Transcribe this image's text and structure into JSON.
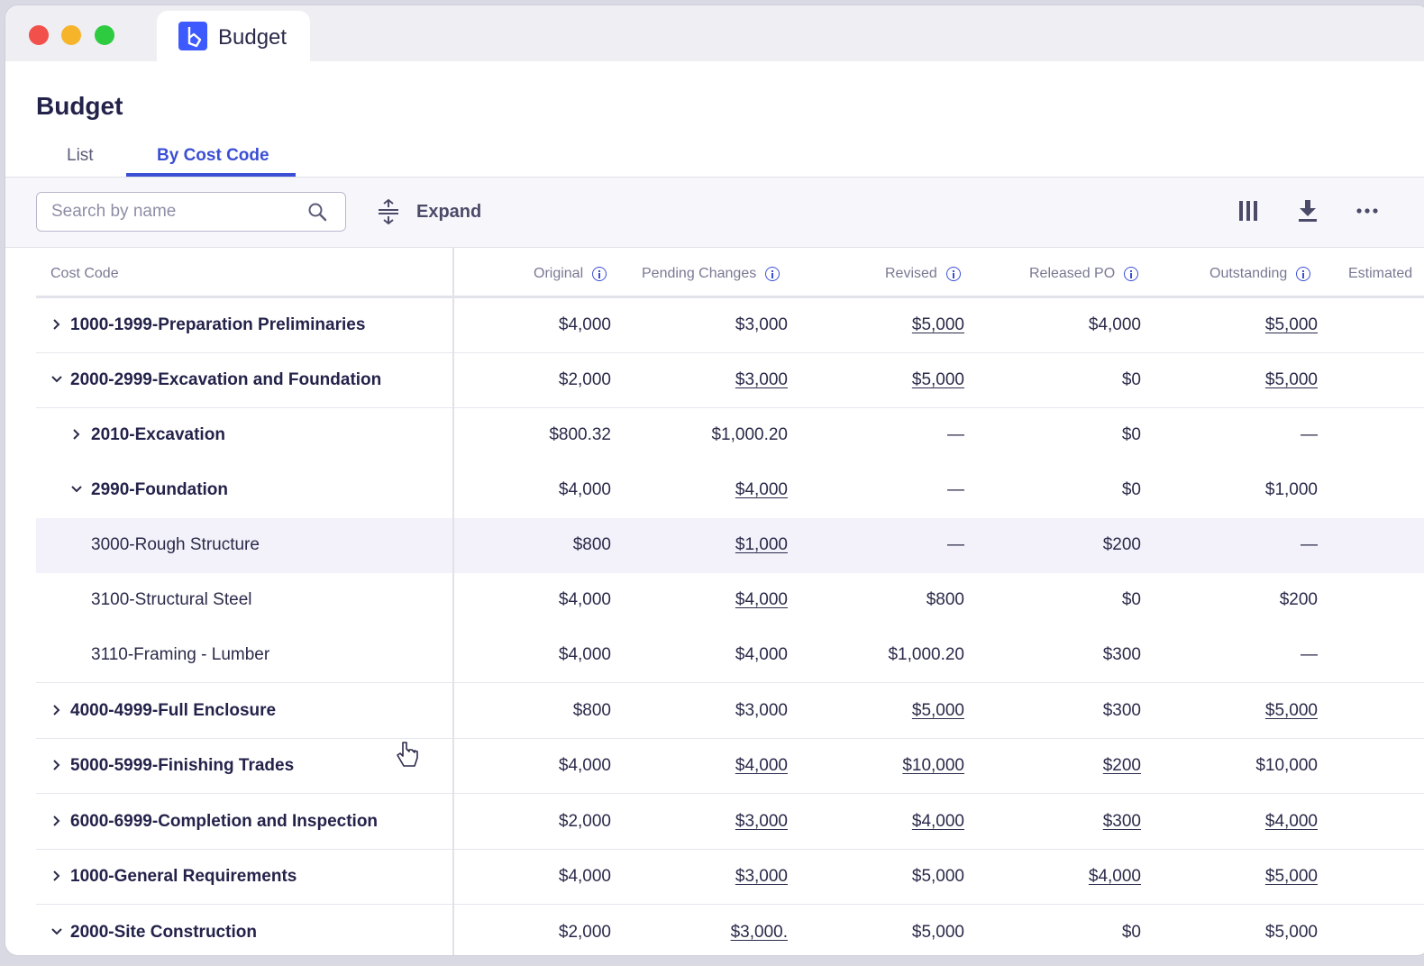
{
  "window": {
    "tab_title": "Budget"
  },
  "page": {
    "title": "Budget"
  },
  "tabs": [
    {
      "label": "List"
    },
    {
      "label": "By Cost Code"
    }
  ],
  "toolbar": {
    "search_placeholder": "Search by name",
    "expand_label": "Expand"
  },
  "table": {
    "columns": [
      "Cost Code",
      "Original",
      "Pending Changes",
      "Revised",
      "Released PO",
      "Outstanding",
      "Estimated"
    ],
    "rows": [
      {
        "name": "1000-1999-Preparation Preliminaries",
        "original": "$4,000",
        "pending": "$3,000",
        "revised": "$5,000",
        "released": "$4,000",
        "outstanding": "$5,000"
      },
      {
        "name": "2000-2999-Excavation and Foundation",
        "original": "$2,000",
        "pending": "$3,000",
        "revised": "$5,000",
        "released": "$0",
        "outstanding": "$5,000"
      },
      {
        "name": "2010-Excavation",
        "original": "$800.32",
        "pending": "$1,000.20",
        "revised": "—",
        "released": "$0",
        "outstanding": "—"
      },
      {
        "name": "2990-Foundation",
        "original": "$4,000",
        "pending": "$4,000",
        "revised": "—",
        "released": "$0",
        "outstanding": "$1,000"
      },
      {
        "name": "3000-Rough Structure",
        "original": "$800",
        "pending": "$1,000",
        "revised": "—",
        "released": "$200",
        "outstanding": "—"
      },
      {
        "name": "3100-Structural Steel",
        "original": "$4,000",
        "pending": "$4,000",
        "revised": "$800",
        "released": "$0",
        "outstanding": "$200"
      },
      {
        "name": "3110-Framing - Lumber",
        "original": "$4,000",
        "pending": "$4,000",
        "revised": "$1,000.20",
        "released": "$300",
        "outstanding": "—"
      },
      {
        "name": "4000-4999-Full Enclosure",
        "original": "$800",
        "pending": "$3,000",
        "revised": "$5,000",
        "released": "$300",
        "outstanding": "$5,000"
      },
      {
        "name": "5000-5999-Finishing Trades",
        "original": "$4,000",
        "pending": "$4,000",
        "revised": "$10,000",
        "released": "$200",
        "outstanding": "$10,000"
      },
      {
        "name": "6000-6999-Completion and Inspection",
        "original": "$2,000",
        "pending": "$3,000",
        "revised": "$4,000",
        "released": "$300",
        "outstanding": "$4,000"
      },
      {
        "name": "1000-General Requirements",
        "original": "$4,000",
        "pending": "$3,000",
        "revised": "$5,000",
        "released": "$4,000",
        "outstanding": "$5,000"
      },
      {
        "name": "2000-Site Construction",
        "original": "$2,000",
        "pending": "$3,000.",
        "revised": "$5,000",
        "released": "$0",
        "outstanding": "$5,000"
      }
    ]
  },
  "colors": {
    "accent": "#3b4fd4",
    "text": "#2b2a4a",
    "highlight_row": "#f3f2fa"
  }
}
